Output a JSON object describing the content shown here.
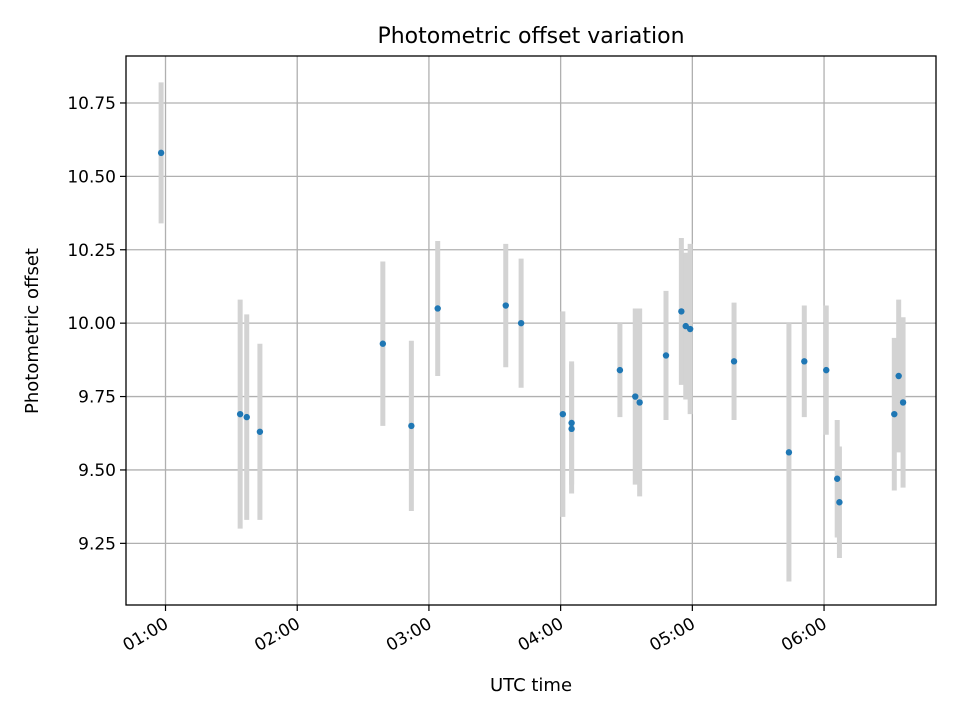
{
  "chart_data": {
    "type": "scatter",
    "title": "Photometric offset variation",
    "xlabel": "UTC time",
    "ylabel": "Photometric offset",
    "x_ticks": [
      "01:00",
      "02:00",
      "03:00",
      "04:00",
      "05:00",
      "06:00"
    ],
    "y_ticks": [
      "9.25",
      "9.50",
      "9.75",
      "10.00",
      "10.25",
      "10.50",
      "10.75"
    ],
    "xlim": [
      "00:42",
      "06:51"
    ],
    "ylim": [
      9.04,
      10.91
    ],
    "grid": true,
    "colors": {
      "points": "#1f77b4",
      "error_bars": "#d3d3d3"
    },
    "points": [
      {
        "x": "00:58",
        "y": 10.58,
        "err": 0.24
      },
      {
        "x": "01:34",
        "y": 9.69,
        "err": 0.39
      },
      {
        "x": "01:37",
        "y": 9.68,
        "err": 0.35
      },
      {
        "x": "01:43",
        "y": 9.63,
        "err": 0.3
      },
      {
        "x": "02:39",
        "y": 9.93,
        "err": 0.28
      },
      {
        "x": "02:52",
        "y": 9.65,
        "err": 0.29
      },
      {
        "x": "03:04",
        "y": 10.05,
        "err": 0.23
      },
      {
        "x": "03:35",
        "y": 10.06,
        "err": 0.21
      },
      {
        "x": "03:42",
        "y": 10.0,
        "err": 0.22
      },
      {
        "x": "04:01",
        "y": 9.69,
        "err": 0.35
      },
      {
        "x": "04:05",
        "y": 9.66,
        "err": 0.21
      },
      {
        "x": "04:05",
        "y": 9.64,
        "err": 0.22
      },
      {
        "x": "04:27",
        "y": 9.84,
        "err": 0.16
      },
      {
        "x": "04:34",
        "y": 9.75,
        "err": 0.3
      },
      {
        "x": "04:36",
        "y": 9.73,
        "err": 0.32
      },
      {
        "x": "04:48",
        "y": 9.89,
        "err": 0.22
      },
      {
        "x": "04:55",
        "y": 10.04,
        "err": 0.25
      },
      {
        "x": "04:57",
        "y": 9.99,
        "err": 0.25
      },
      {
        "x": "04:59",
        "y": 9.98,
        "err": 0.29
      },
      {
        "x": "05:19",
        "y": 9.87,
        "err": 0.2
      },
      {
        "x": "05:44",
        "y": 9.56,
        "err": 0.44
      },
      {
        "x": "05:51",
        "y": 9.87,
        "err": 0.19
      },
      {
        "x": "06:01",
        "y": 9.84,
        "err": 0.22
      },
      {
        "x": "06:06",
        "y": 9.47,
        "err": 0.2
      },
      {
        "x": "06:07",
        "y": 9.39,
        "err": 0.19
      },
      {
        "x": "06:32",
        "y": 9.69,
        "err": 0.26
      },
      {
        "x": "06:34",
        "y": 9.82,
        "err": 0.26
      },
      {
        "x": "06:36",
        "y": 9.73,
        "err": 0.29
      }
    ]
  }
}
